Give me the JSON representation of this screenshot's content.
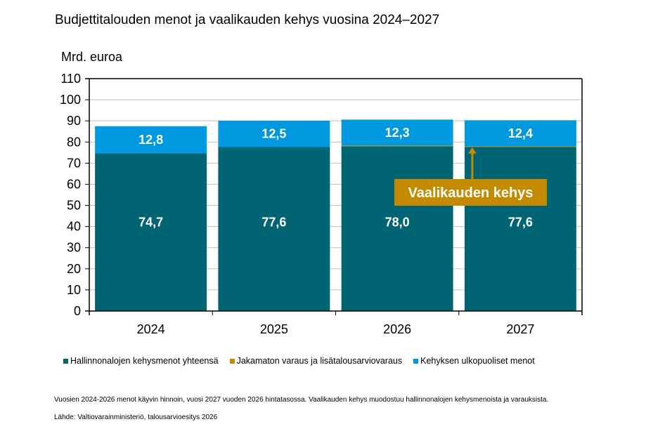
{
  "chart_data": {
    "type": "bar",
    "stacked": true,
    "title": "Budjettitalouden menot ja vaalikauden kehys vuosina 2024–2027",
    "ylabel": "Mrd. euroa",
    "xlabel": "",
    "ylim": [
      0,
      110
    ],
    "yticks": [
      0,
      10,
      20,
      30,
      40,
      50,
      60,
      70,
      80,
      90,
      100,
      110
    ],
    "grid": true,
    "categories": [
      "2024",
      "2025",
      "2026",
      "2027"
    ],
    "series": [
      {
        "name": "Hallinnonalojen kehysmenot yhteensä",
        "color": "#006473",
        "values": [
          74.7,
          77.6,
          78.0,
          77.6
        ],
        "labels": [
          "74,7",
          "77,6",
          "78,0",
          "77,6"
        ]
      },
      {
        "name": "Jakamaton varaus ja lisätalousarviovaraus",
        "color": "#C48A00",
        "values": [
          0,
          0,
          0.3,
          0.3
        ],
        "labels": [
          "",
          "",
          "",
          ""
        ]
      },
      {
        "name": "Kehyksen ulkopuoliset menot",
        "color": "#0099E0",
        "values": [
          12.8,
          12.5,
          12.3,
          12.4
        ],
        "labels": [
          "12,8",
          "12,5",
          "12,3",
          "12,4"
        ]
      }
    ],
    "legend_position": "bottom",
    "annotation": {
      "text": "Vaalikauden kehys",
      "color": "#C48A00",
      "points_to_category": "2027"
    }
  },
  "footnotes": {
    "note": "Vuosien 2024-2026 menot käyvin hinnoin, vuosi 2027 vuoden 2026 hintatasossa. Vaalikauden kehys muodostuu hallinnonalojen kehysmenoista ja varauksista.",
    "source": "Lähde: Valtiovarainministeriö, talousarvioesitys 2026"
  }
}
